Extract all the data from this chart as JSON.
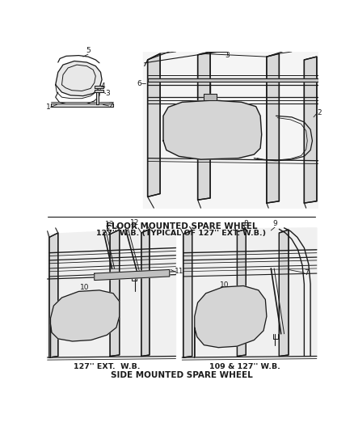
{
  "bg_color": "#ffffff",
  "line_color": "#1a1a1a",
  "fig_width": 4.38,
  "fig_height": 5.33,
  "dpi": 100,
  "texts": {
    "floor_label1": "FLOOR MOUNTED SPARE WHEEL",
    "floor_label2": "127'' W.B. (TYPICAL OF 127'' EXT. W.B.)",
    "side_label": "SIDE MOUNTED SPARE WHEEL",
    "wb_left": "127'' EXT.  W.B.",
    "wb_right": "109 & 127'' W.B."
  },
  "font_size_title": 7.5,
  "font_size_sub": 6.8,
  "font_size_label": 6.5
}
